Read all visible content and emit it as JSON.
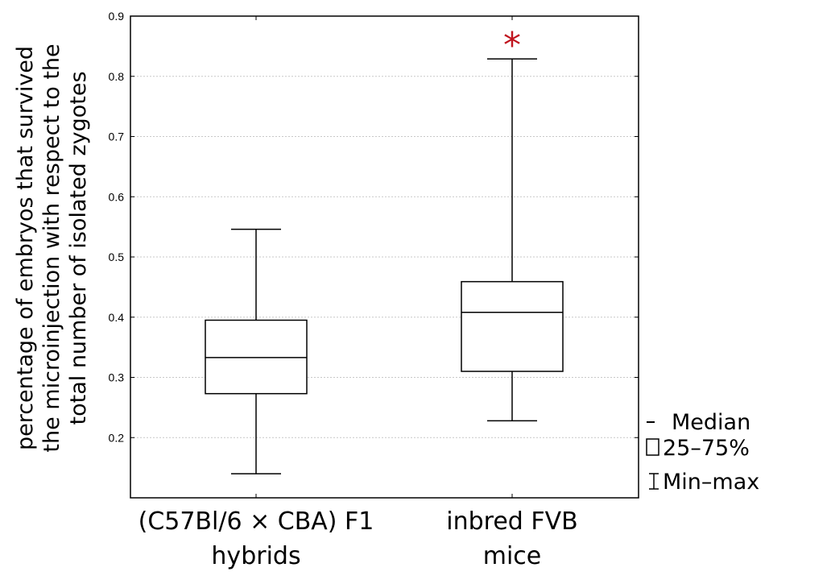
{
  "chart_data": {
    "type": "boxplot",
    "title": "",
    "xlabel": "",
    "ylabel_lines": [
      "percentage of embryos that survived",
      "the microinjection with respect to the",
      "total number of isolated zygotes"
    ],
    "ylim": [
      0.1,
      0.9
    ],
    "yticks": [
      "0.2",
      "0.3",
      "0.4",
      "0.5",
      "0.6",
      "0.7",
      "0.8",
      "0.9"
    ],
    "grid": true,
    "categories": [
      {
        "lines": [
          "(C57Bl/6 × CBA) F1",
          "hybrids"
        ]
      },
      {
        "lines": [
          "inbred FVB",
          "mice"
        ]
      }
    ],
    "boxes": [
      {
        "min": 0.14,
        "q1": 0.273,
        "median": 0.333,
        "q3": 0.395,
        "max": 0.546,
        "marker": ""
      },
      {
        "min": 0.228,
        "q1": 0.31,
        "median": 0.408,
        "q3": 0.459,
        "max": 0.829,
        "marker": "*"
      }
    ],
    "marker_color": "#c0141e",
    "legend": {
      "placement": "right",
      "items": [
        {
          "symbol": "dash",
          "label": "Median"
        },
        {
          "symbol": "box",
          "label": "25–75%"
        },
        {
          "symbol": "whisker",
          "label": "Min–max"
        }
      ]
    }
  }
}
